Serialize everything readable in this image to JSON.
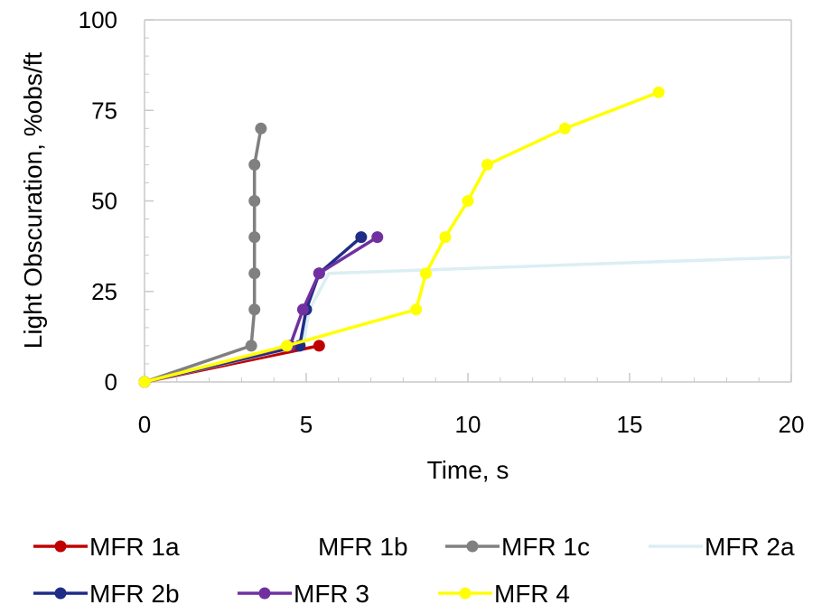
{
  "chart_data": {
    "type": "line",
    "title": "",
    "xlabel": "Time, s",
    "ylabel": "Light Obscuration, %obs/ft",
    "xlim": [
      0,
      20
    ],
    "ylim": [
      0,
      100
    ],
    "xticks": [
      0,
      5,
      10,
      15,
      20
    ],
    "yticks": [
      0,
      25,
      50,
      75,
      100
    ],
    "grid": false,
    "legend_position": "bottom",
    "series": [
      {
        "name": "MFR 1a",
        "color": "#c00000",
        "markers": true,
        "points": [
          [
            0,
            0
          ],
          [
            5.4,
            10
          ]
        ]
      },
      {
        "name": "MFR 1b",
        "color": "#ffffff",
        "markers": false,
        "points": []
      },
      {
        "name": "MFR 1c",
        "color": "#808080",
        "markers": true,
        "points": [
          [
            0,
            0
          ],
          [
            3.3,
            10
          ],
          [
            3.4,
            20
          ],
          [
            3.4,
            30
          ],
          [
            3.4,
            40
          ],
          [
            3.4,
            50
          ],
          [
            3.4,
            60
          ],
          [
            3.6,
            70
          ]
        ]
      },
      {
        "name": "MFR 2a",
        "color": "#dbeef3",
        "markers": false,
        "points": [
          [
            0,
            0
          ],
          [
            4.9,
            10
          ],
          [
            5.1,
            20
          ],
          [
            5.7,
            30
          ],
          [
            20,
            34.5
          ]
        ]
      },
      {
        "name": "MFR 2b",
        "color": "#1f2d86",
        "markers": true,
        "points": [
          [
            0,
            0
          ],
          [
            4.8,
            10
          ],
          [
            5.0,
            20
          ],
          [
            5.4,
            30
          ],
          [
            6.7,
            40
          ]
        ]
      },
      {
        "name": "MFR 3",
        "color": "#7030a0",
        "markers": true,
        "points": [
          [
            0,
            0
          ],
          [
            4.5,
            10
          ],
          [
            4.9,
            20
          ],
          [
            5.4,
            30
          ],
          [
            7.2,
            40
          ]
        ]
      },
      {
        "name": "MFR 4",
        "color": "#ffff00",
        "markers": true,
        "points": [
          [
            0,
            0
          ],
          [
            4.4,
            10
          ],
          [
            8.4,
            20
          ],
          [
            8.7,
            30
          ],
          [
            9.3,
            40
          ],
          [
            10.0,
            50
          ],
          [
            10.6,
            60
          ],
          [
            13.0,
            70
          ],
          [
            15.9,
            80
          ]
        ]
      }
    ]
  }
}
